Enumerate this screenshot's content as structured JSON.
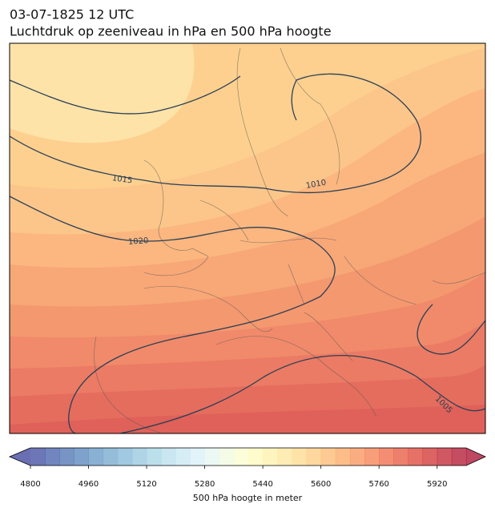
{
  "title": "03-07-1825 12 UTC",
  "subtitle": "Luchtdruk op zeeniveau in hPa en 500 hPa hoogte",
  "isobars": [
    1015,
    1010,
    1020,
    1005
  ],
  "colorbar": {
    "label": "500 hPa hoogte in meter",
    "range": [
      4800,
      6000
    ],
    "ticks": [
      4800,
      4960,
      5120,
      5280,
      5440,
      5600,
      5760,
      5920
    ]
  }
}
